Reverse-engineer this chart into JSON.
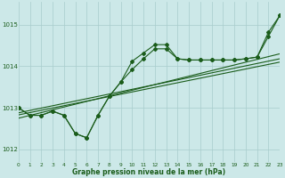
{
  "title": "Graphe pression niveau de la mer (hPa)",
  "bg_color": "#cce8e8",
  "grid_color": "#a8cccc",
  "line_color": "#1a5c1a",
  "xlim": [
    0,
    23
  ],
  "ylim": [
    1011.7,
    1015.55
  ],
  "yticks": [
    1012,
    1013,
    1014,
    1015
  ],
  "xtick_labels": [
    "0",
    "1",
    "2",
    "3",
    "4",
    "5",
    "6",
    "7",
    "8",
    "9",
    "10",
    "11",
    "12",
    "13",
    "14",
    "15",
    "16",
    "17",
    "18",
    "19",
    "20",
    "21",
    "22",
    "23"
  ],
  "y_main": [
    1013.0,
    1012.82,
    1012.82,
    1012.92,
    1012.82,
    1012.38,
    1012.28,
    1012.82,
    1013.28,
    1013.62,
    1013.92,
    1014.18,
    1014.42,
    1014.42,
    1014.18,
    1014.15,
    1014.15,
    1014.15,
    1014.15,
    1014.15,
    1014.18,
    1014.22,
    1014.72,
    1015.22
  ],
  "y_upper": [
    1013.0,
    1012.82,
    1012.82,
    1012.92,
    1012.82,
    1012.38,
    1012.28,
    1012.82,
    1013.28,
    1013.62,
    1014.12,
    1014.32,
    1014.52,
    1014.52,
    1014.18,
    1014.15,
    1014.15,
    1014.15,
    1014.15,
    1014.15,
    1014.18,
    1014.22,
    1014.82,
    1015.22
  ],
  "reg_lines": [
    [
      1012.88,
      1014.18
    ],
    [
      1012.83,
      1014.1
    ],
    [
      1012.75,
      1014.3
    ]
  ],
  "lw": 0.8,
  "ms": 2.0
}
